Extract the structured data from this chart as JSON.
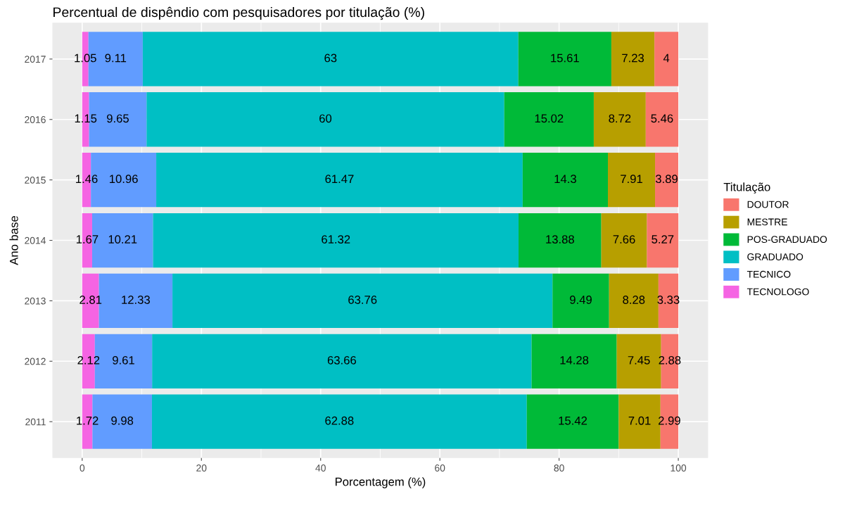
{
  "chart_data": {
    "type": "bar",
    "orientation": "horizontal",
    "stacked": true,
    "title": "Percentual de dispêndio com pesquisadores por titulação (%)",
    "xlabel": "Porcentagem (%)",
    "ylabel": "Ano base",
    "legend_title": "Titulação",
    "categories": [
      "2017",
      "2016",
      "2015",
      "2014",
      "2013",
      "2012",
      "2011"
    ],
    "series": [
      {
        "name": "TECNOLOGO",
        "color": "#f564e3",
        "values": [
          1.05,
          1.15,
          1.46,
          1.67,
          2.81,
          2.12,
          1.72
        ]
      },
      {
        "name": "TECNICO",
        "color": "#619cff",
        "values": [
          9.11,
          9.65,
          10.96,
          10.21,
          12.33,
          9.61,
          9.98
        ]
      },
      {
        "name": "GRADUADO",
        "color": "#00bfc4",
        "values": [
          63,
          60,
          61.47,
          61.32,
          63.76,
          63.66,
          62.88
        ]
      },
      {
        "name": "POS-GRADUADO",
        "color": "#00ba38",
        "values": [
          15.61,
          15.02,
          14.3,
          13.88,
          9.49,
          14.28,
          15.42
        ]
      },
      {
        "name": "MESTRE",
        "color": "#b79f00",
        "values": [
          7.23,
          8.72,
          7.91,
          7.66,
          8.28,
          7.45,
          7.01
        ]
      },
      {
        "name": "DOUTOR",
        "color": "#f8766d",
        "values": [
          4,
          5.46,
          3.89,
          5.27,
          3.33,
          2.88,
          2.99
        ]
      }
    ],
    "xlim": [
      -5,
      105
    ],
    "xticks": [
      0,
      20,
      40,
      60,
      80,
      100
    ],
    "data_labels": true,
    "grid": true,
    "legend": "right"
  }
}
